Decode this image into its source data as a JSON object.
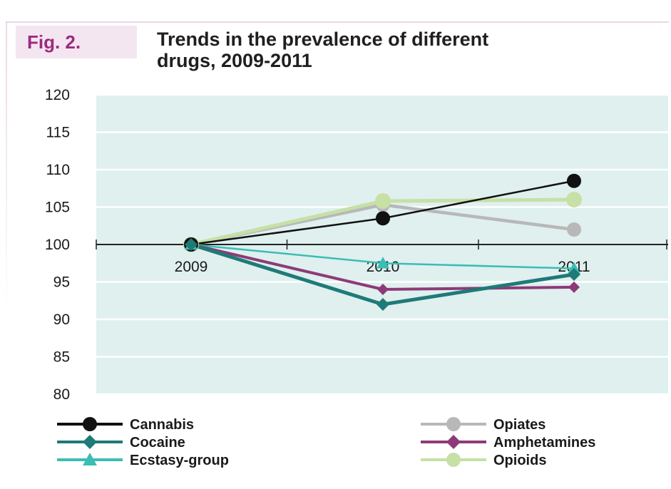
{
  "figure": {
    "label": "Fig. 2.",
    "title": "Trends in the prevalence of different\ndrugs, 2009-2011"
  },
  "chart_data": {
    "type": "line",
    "title": "Trends in the prevalence of different drugs, 2009-2011",
    "xlabel": "",
    "ylabel": "",
    "x": [
      "2009",
      "2010",
      "2011"
    ],
    "ylim": [
      80,
      120
    ],
    "yticks": [
      80,
      85,
      90,
      95,
      100,
      105,
      110,
      115,
      120
    ],
    "grid": true,
    "background_color": "#dff0ee",
    "legend_placement": "bottom",
    "series": [
      {
        "name": "Cannabis",
        "values": [
          100,
          103.5,
          108.5
        ],
        "color": "#111111",
        "marker": "circle"
      },
      {
        "name": "Opiates",
        "values": [
          100,
          105.3,
          102
        ],
        "color": "#b8b8b8",
        "marker": "circle"
      },
      {
        "name": "Cocaine",
        "values": [
          100,
          92,
          96
        ],
        "color": "#1f7a78",
        "marker": "diamond"
      },
      {
        "name": "Amphetamines",
        "values": [
          100,
          94,
          94.3
        ],
        "color": "#8e3a79",
        "marker": "diamond"
      },
      {
        "name": "Ecstasy-group",
        "values": [
          100,
          97.5,
          96.8
        ],
        "color": "#3bbdb4",
        "marker": "triangle"
      },
      {
        "name": "Opioids",
        "values": [
          100,
          105.8,
          106
        ],
        "color": "#c6e0a6",
        "marker": "circle"
      }
    ]
  }
}
